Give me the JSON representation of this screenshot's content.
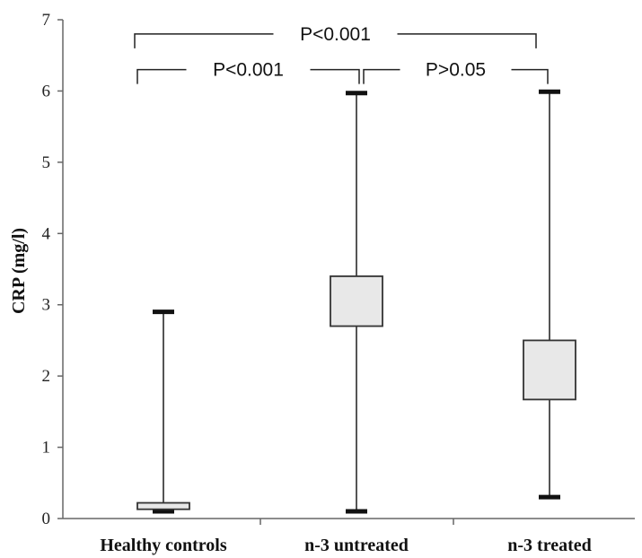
{
  "chart_data": {
    "type": "boxplot",
    "title": "",
    "xlabel": "",
    "ylabel": "CRP (mg/l)",
    "ylim": [
      0,
      7
    ],
    "yticks": [
      0,
      1,
      2,
      3,
      4,
      5,
      6,
      7
    ],
    "categories": [
      "Healthy controls",
      "n-3 untreated",
      "n-3 treated"
    ],
    "boxes": [
      {
        "min": 0.1,
        "q1": 0.13,
        "q3": 0.22,
        "max": 2.9
      },
      {
        "min": 0.1,
        "q1": 2.7,
        "q3": 3.4,
        "max": 5.97
      },
      {
        "min": 0.3,
        "q1": 1.67,
        "q3": 2.5,
        "max": 5.99
      }
    ],
    "box_fill": "#e8e8e8",
    "comparisons": [
      {
        "from": 0,
        "to": 2,
        "label": "P<0.001",
        "level": 6.8
      },
      {
        "from": 0,
        "to": 1,
        "label": "P<0.001",
        "level": 6.3
      },
      {
        "from": 1,
        "to": 2,
        "label": "P>0.05",
        "level": 6.3
      }
    ]
  }
}
